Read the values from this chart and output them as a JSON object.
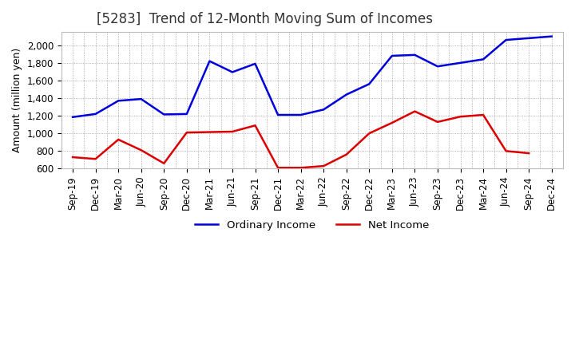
{
  "title": "[5283]  Trend of 12-Month Moving Sum of Incomes",
  "ylabel": "Amount (million yen)",
  "ylim": [
    600,
    2150
  ],
  "yticks": [
    600,
    800,
    1000,
    1200,
    1400,
    1600,
    1800,
    2000
  ],
  "background_color": "#ffffff",
  "plot_bg_color": "#ffffff",
  "grid_color": "#999999",
  "labels": [
    "Sep-19",
    "Dec-19",
    "Mar-20",
    "Jun-20",
    "Sep-20",
    "Dec-20",
    "Mar-21",
    "Jun-21",
    "Sep-21",
    "Dec-21",
    "Mar-22",
    "Jun-22",
    "Sep-22",
    "Dec-22",
    "Mar-23",
    "Jun-23",
    "Sep-23",
    "Dec-23",
    "Mar-24",
    "Jun-24",
    "Sep-24",
    "Dec-24"
  ],
  "ordinary_income": [
    1185,
    1220,
    1370,
    1390,
    1215,
    1220,
    1820,
    1695,
    1790,
    1210,
    1210,
    1270,
    1440,
    1560,
    1880,
    1890,
    1760,
    1800,
    1840,
    2060,
    2080,
    2100
  ],
  "net_income": [
    730,
    710,
    930,
    810,
    660,
    1010,
    1015,
    1020,
    1090,
    610,
    610,
    630,
    760,
    1000,
    1120,
    1250,
    1130,
    1190,
    1210,
    800,
    775,
    null
  ],
  "ordinary_color": "#0000dd",
  "net_color": "#dd0000",
  "line_width": 1.8,
  "title_fontsize": 12,
  "title_color": "#333333",
  "axis_fontsize": 9,
  "tick_fontsize": 8.5,
  "legend_fontsize": 9.5
}
